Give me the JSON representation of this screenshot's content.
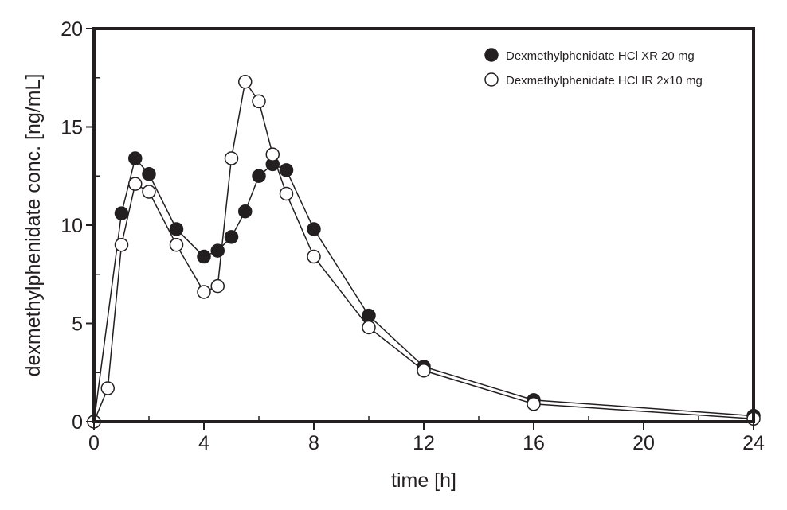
{
  "chart_data": {
    "type": "line",
    "title": "",
    "xlabel": "time [h]",
    "ylabel": "dexmethylphenidate conc. [ng/mL]",
    "xlim": [
      0,
      24
    ],
    "ylim": [
      0,
      20
    ],
    "xticks": [
      0,
      4,
      8,
      12,
      16,
      20,
      24
    ],
    "xticks_minor": [
      2,
      6,
      10,
      14,
      18,
      22
    ],
    "yticks": [
      0,
      5,
      10,
      15,
      20
    ],
    "yticks_minor": [
      2.5,
      7.5,
      12.5,
      17.5
    ],
    "grid": false,
    "legend_position": "top-right",
    "series": [
      {
        "name": "Dexmethylphenidate HCl XR 20 mg",
        "marker": "filled-circle",
        "x": [
          0,
          1,
          1.5,
          2,
          3,
          4,
          4.5,
          5,
          5.5,
          6,
          6.5,
          7,
          8,
          10,
          12,
          16,
          24
        ],
        "y": [
          0,
          10.6,
          13.4,
          12.6,
          9.8,
          8.4,
          8.7,
          9.4,
          10.7,
          12.5,
          13.1,
          12.8,
          9.8,
          5.4,
          2.8,
          1.1,
          0.3
        ]
      },
      {
        "name": "Dexmethylphenidate HCl IR 2x10 mg",
        "marker": "open-circle",
        "x": [
          0,
          0.5,
          1,
          1.5,
          2,
          3,
          4,
          4.5,
          5,
          5.5,
          6,
          6.5,
          7,
          8,
          10,
          12,
          16,
          24
        ],
        "y": [
          0,
          1.7,
          9.0,
          12.1,
          11.7,
          9.0,
          6.6,
          6.9,
          13.4,
          17.3,
          16.3,
          13.6,
          11.6,
          8.4,
          4.8,
          2.6,
          0.9,
          0.15
        ]
      }
    ]
  }
}
